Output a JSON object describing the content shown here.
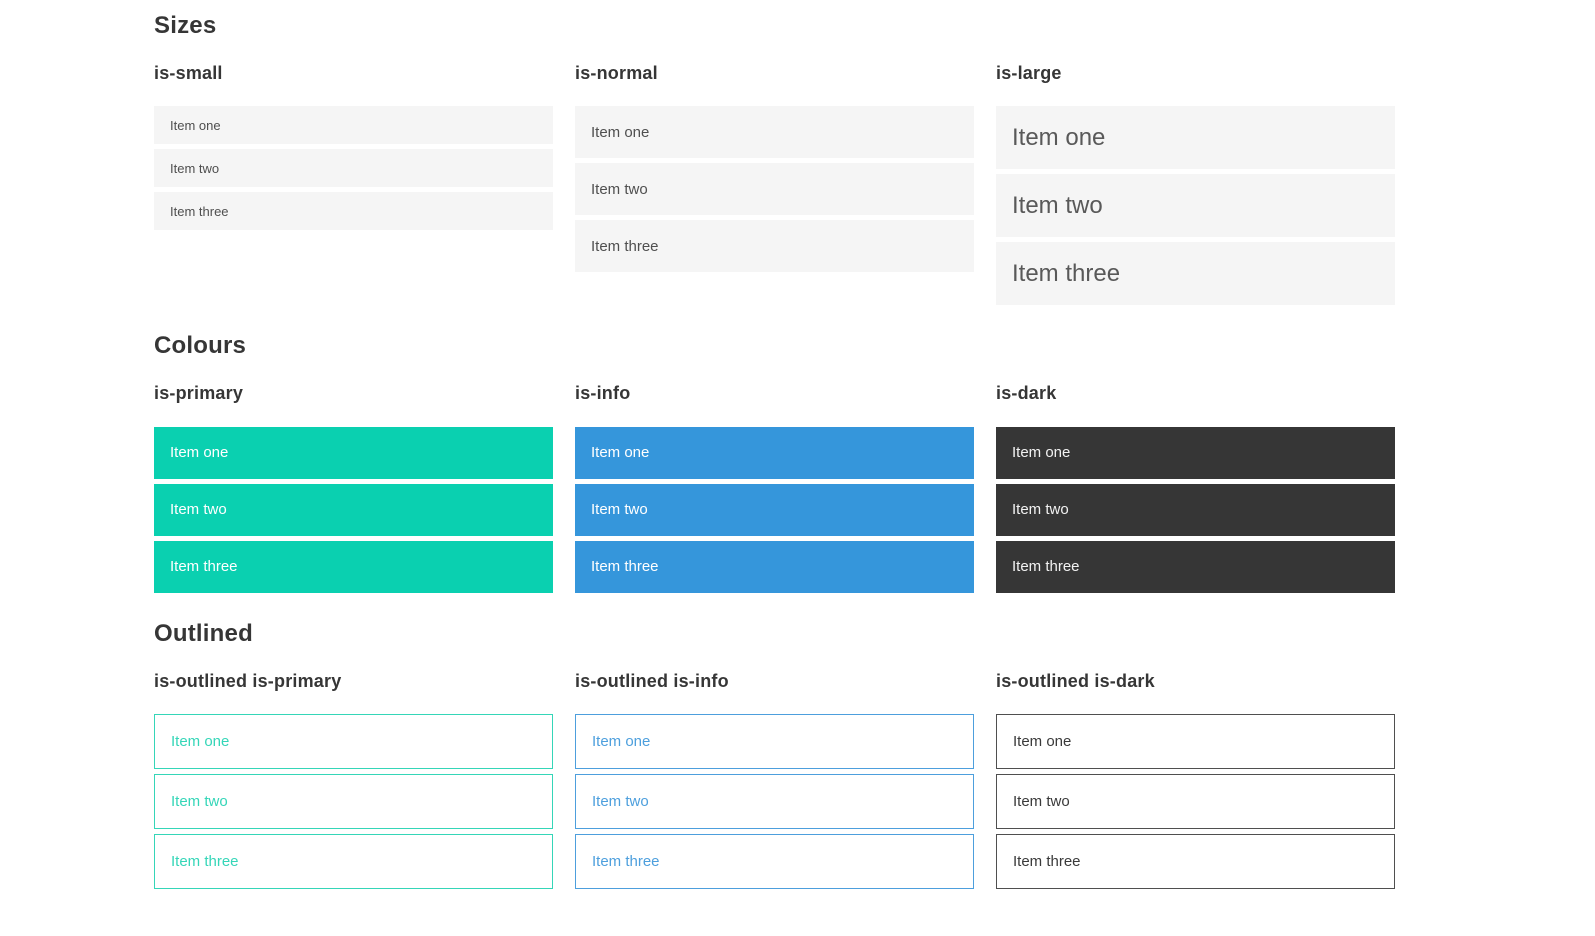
{
  "colors": {
    "page_background": "#ffffff",
    "heading_text": "#363636",
    "item_background_gray": "#f5f5f5",
    "item_text_gray": "#4f4f4f",
    "primary": "#0ad0b0",
    "info": "#3596db",
    "dark": "#363636",
    "outlined_primary": "#35d6b8",
    "outlined_info": "#4d9fdd",
    "outlined_dark": "#4f4f4f",
    "text_on_color": "#ffffff"
  },
  "sections": [
    {
      "title": "Sizes",
      "groups": [
        {
          "label": "is-small",
          "items": [
            "Item one",
            "Item two",
            "Item three"
          ]
        },
        {
          "label": "is-normal",
          "items": [
            "Item one",
            "Item two",
            "Item three"
          ]
        },
        {
          "label": "is-large",
          "items": [
            "Item one",
            "Item two",
            "Item three"
          ]
        }
      ]
    },
    {
      "title": "Colours",
      "groups": [
        {
          "label": "is-primary",
          "items": [
            "Item one",
            "Item two",
            "Item three"
          ]
        },
        {
          "label": "is-info",
          "items": [
            "Item one",
            "Item two",
            "Item three"
          ]
        },
        {
          "label": "is-dark",
          "items": [
            "Item one",
            "Item two",
            "Item three"
          ]
        }
      ]
    },
    {
      "title": "Outlined",
      "groups": [
        {
          "label": "is-outlined is-primary",
          "items": [
            "Item one",
            "Item two",
            "Item three"
          ]
        },
        {
          "label": "is-outlined is-info",
          "items": [
            "Item one",
            "Item two",
            "Item three"
          ]
        },
        {
          "label": "is-outlined is-dark",
          "items": [
            "Item one",
            "Item two",
            "Item three"
          ]
        }
      ]
    }
  ]
}
